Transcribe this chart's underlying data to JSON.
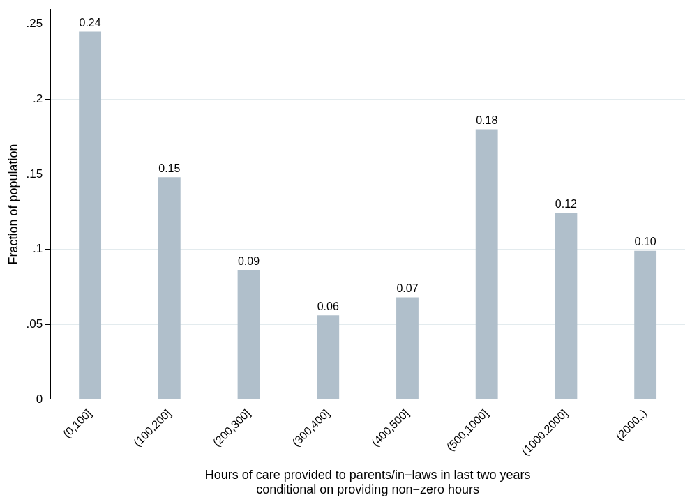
{
  "chart_data": {
    "type": "bar",
    "xlabel": "Hours of care provided to parents/in−laws in last two years\nconditional on providing non−zero hours",
    "ylabel": "Fraction of population",
    "categories": [
      "(0,100]",
      "(100,200]",
      "(200,300]",
      "(300,400]",
      "(400,500]",
      "(500,1000]",
      "(1000,2000]",
      "(2000,.)"
    ],
    "values": [
      0.245,
      0.148,
      0.086,
      0.056,
      0.068,
      0.18,
      0.124,
      0.099
    ],
    "value_labels": [
      "0.24",
      "0.15",
      "0.09",
      "0.06",
      "0.07",
      "0.18",
      "0.12",
      "0.10"
    ],
    "color": "#b0bfcb",
    "ylim": [
      0,
      0.26
    ],
    "yticks": [
      0,
      {
        "value": 0.05,
        "label": ".05"
      },
      {
        "value": 0.1,
        "label": ".1"
      },
      {
        "value": 0.15,
        "label": ".15"
      },
      {
        "value": 0.2,
        "label": ".2"
      },
      {
        "value": 0.25,
        "label": ".25"
      }
    ],
    "grid": "y",
    "legend": false
  }
}
